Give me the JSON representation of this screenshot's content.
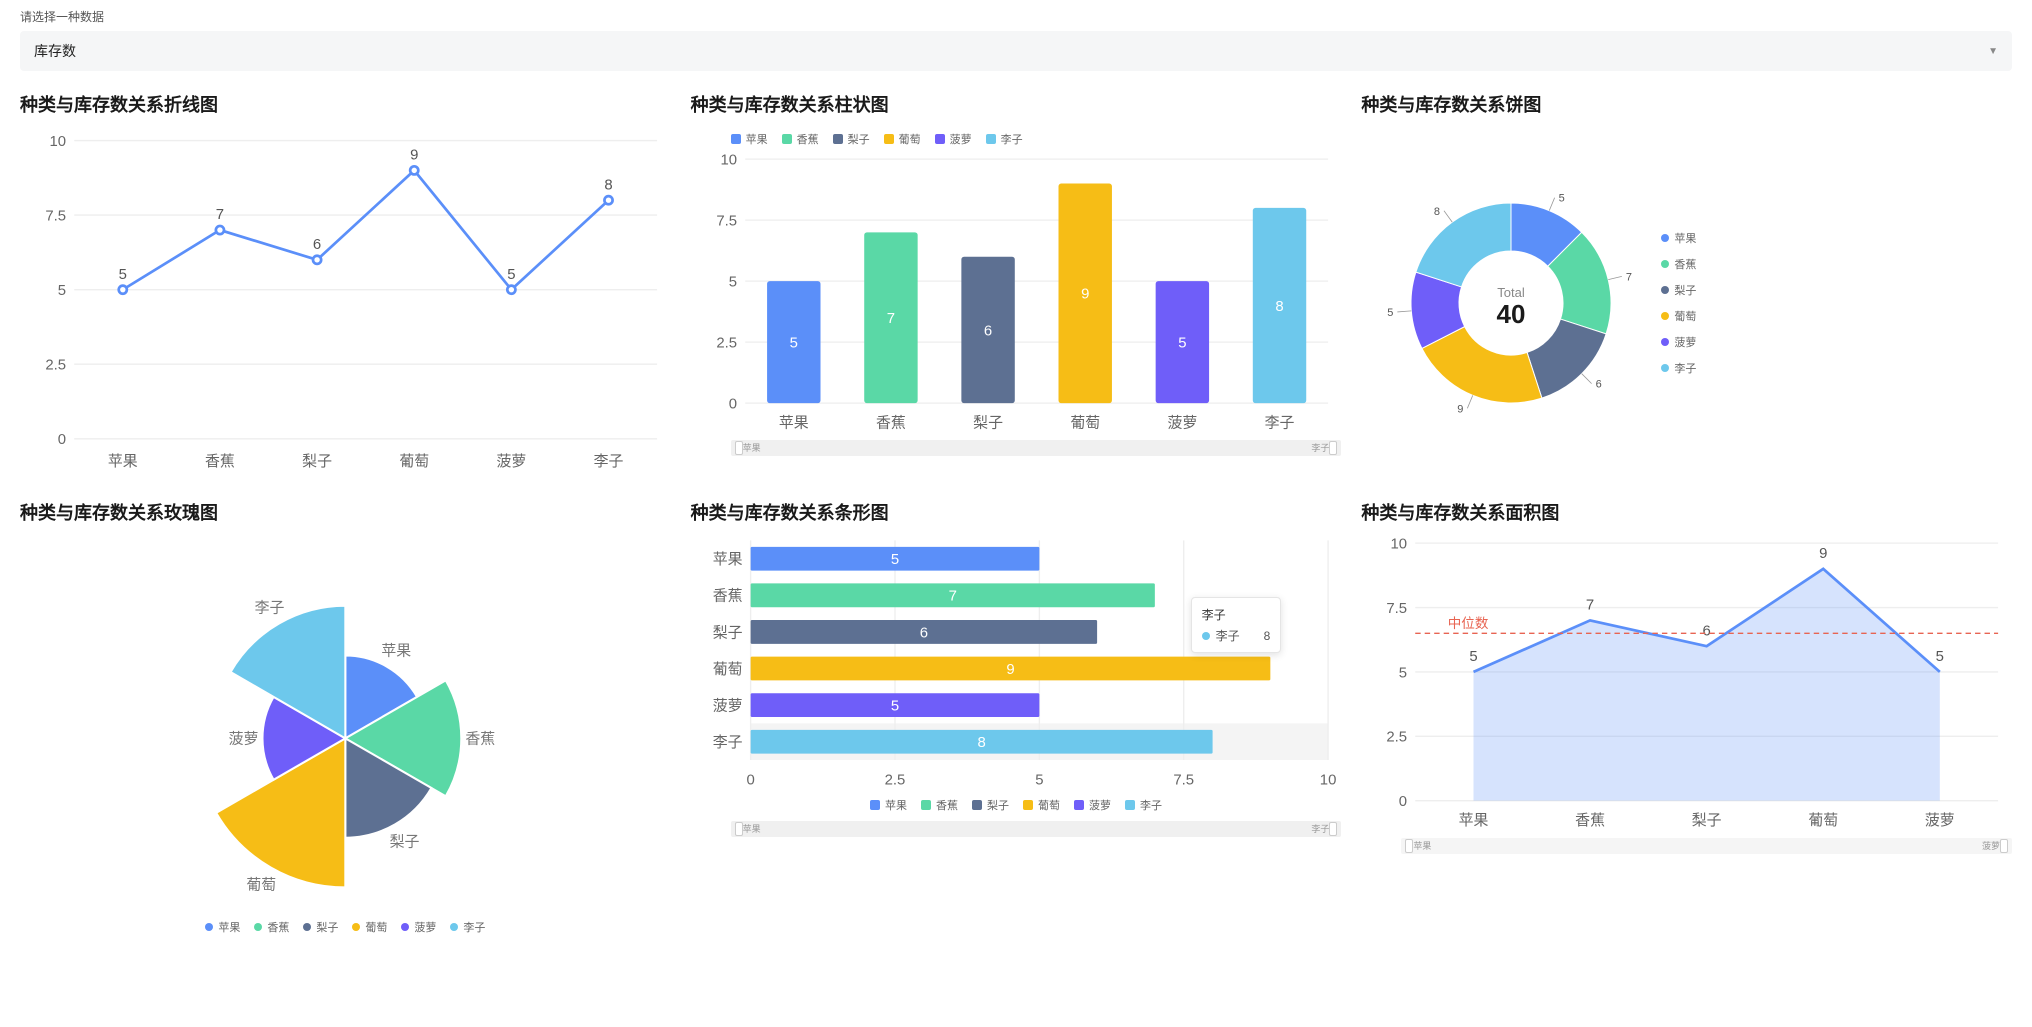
{
  "selector": {
    "label": "请选择一种数据",
    "value": "库存数"
  },
  "categories": [
    "苹果",
    "香蕉",
    "梨子",
    "葡萄",
    "菠萝",
    "李子"
  ],
  "values": [
    5,
    7,
    6,
    9,
    5,
    8
  ],
  "colors": [
    "#5B8FF9",
    "#5AD8A6",
    "#5D7092",
    "#F6BD16",
    "#6F5EF9",
    "#6DC8EC"
  ],
  "textColor": "#666",
  "gridColor": "#eee",
  "axisColor": "#bbb",
  "line_chart": {
    "title": "种类与库存数关系折线图",
    "type": "line",
    "yticks": [
      0,
      2.5,
      5,
      7.5,
      10
    ],
    "stroke": "#5B8FF9",
    "point_labels": [
      5,
      7,
      6,
      9,
      5,
      8
    ]
  },
  "bar_chart": {
    "title": "种类与库存数关系柱状图",
    "type": "bar",
    "yticks": [
      0,
      2.5,
      5,
      7.5,
      10
    ],
    "bar_labels": [
      5,
      7,
      6,
      9,
      5,
      8
    ],
    "slider": {
      "start": "苹果",
      "end": "李子"
    }
  },
  "pie_chart": {
    "title": "种类与库存数关系饼图",
    "type": "donut",
    "total_label": "Total",
    "total_value": "40",
    "slice_labels": [
      5,
      7,
      6,
      9,
      5,
      8
    ]
  },
  "rose_chart": {
    "title": "种类与库存数关系玫瑰图",
    "type": "rose"
  },
  "hbar_chart": {
    "title": "种类与库存数关系条形图",
    "type": "hbar",
    "xticks": [
      0,
      2.5,
      5,
      7.5,
      10
    ],
    "bar_labels": [
      5,
      7,
      6,
      9,
      5,
      8
    ],
    "tooltip": {
      "category": "李子",
      "series": "李子",
      "value": 8
    },
    "slider": {
      "start": "苹果",
      "end": "李子"
    }
  },
  "area_chart": {
    "title": "种类与库存数关系面积图",
    "type": "area",
    "yticks": [
      0,
      2.5,
      5,
      7.5,
      10
    ],
    "point_labels": [
      5,
      7,
      6,
      9,
      5
    ],
    "visible_categories": [
      "苹果",
      "香蕉",
      "梨子",
      "葡萄",
      "菠萝"
    ],
    "visible_values": [
      5,
      7,
      6,
      9,
      5
    ],
    "fill": "#5B8FF9",
    "fill_opacity": 0.25,
    "median_label": "中位数",
    "median_value": 6.5,
    "median_color": "#e86452",
    "slider": {
      "start": "苹果",
      "end": "菠萝"
    }
  }
}
